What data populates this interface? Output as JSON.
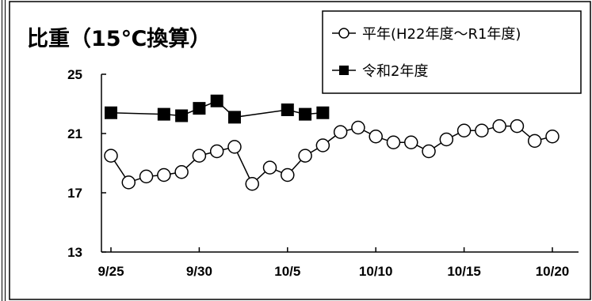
{
  "chart_data": {
    "type": "line",
    "title": "比重（15℃換算）",
    "ylim": [
      13,
      25
    ],
    "y_ticks": [
      13,
      17,
      21,
      25
    ],
    "x_range": [
      0,
      25
    ],
    "x_ticks": [
      {
        "x": 0,
        "label": "9/25"
      },
      {
        "x": 5,
        "label": "9/30"
      },
      {
        "x": 10,
        "label": "10/5"
      },
      {
        "x": 15,
        "label": "10/10"
      },
      {
        "x": 20,
        "label": "10/15"
      },
      {
        "x": 25,
        "label": "10/20"
      }
    ],
    "grid": false,
    "legend_position": "top-right",
    "series": [
      {
        "name": "平年(H22年度～R1年度)",
        "marker": "open-circle",
        "color": "#000000",
        "points": [
          [
            0,
            19.5
          ],
          [
            1,
            17.7
          ],
          [
            2,
            18.1
          ],
          [
            3,
            18.2
          ],
          [
            4,
            18.4
          ],
          [
            5,
            19.5
          ],
          [
            6,
            19.8
          ],
          [
            7,
            20.1
          ],
          [
            8,
            17.6
          ],
          [
            9,
            18.7
          ],
          [
            10,
            18.2
          ],
          [
            11,
            19.5
          ],
          [
            12,
            20.2
          ],
          [
            13,
            21.1
          ],
          [
            14,
            21.4
          ],
          [
            15,
            20.8
          ],
          [
            16,
            20.4
          ],
          [
            17,
            20.4
          ],
          [
            18,
            19.8
          ],
          [
            19,
            20.6
          ],
          [
            20,
            21.2
          ],
          [
            21,
            21.2
          ],
          [
            22,
            21.5
          ],
          [
            23,
            21.5
          ],
          [
            24,
            20.5
          ],
          [
            25,
            20.8
          ]
        ]
      },
      {
        "name": "令和2年度",
        "marker": "filled-square",
        "color": "#000000",
        "points": [
          [
            0,
            22.4
          ],
          [
            3,
            22.3
          ],
          [
            4,
            22.2
          ],
          [
            5,
            22.7
          ],
          [
            6,
            23.2
          ],
          [
            7,
            22.1
          ],
          [
            10,
            22.6
          ],
          [
            11,
            22.3
          ],
          [
            12,
            22.4
          ]
        ]
      }
    ]
  }
}
